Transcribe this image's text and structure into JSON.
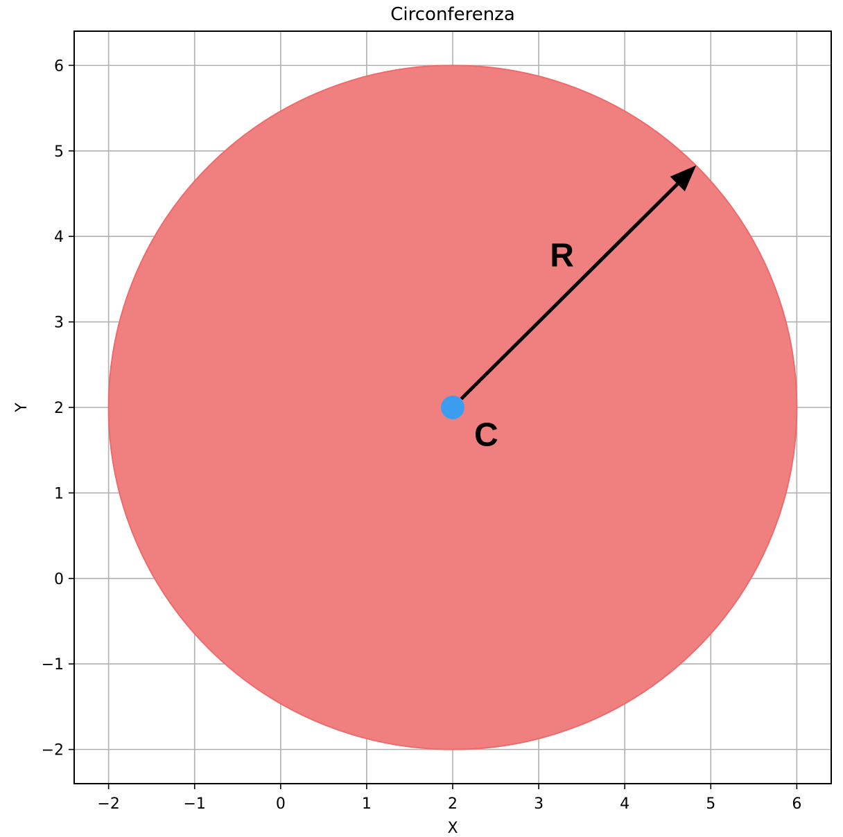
{
  "chart_data": {
    "type": "scatter",
    "title": "Circonferenza",
    "xlabel": "X",
    "ylabel": "Y",
    "xlim": [
      -2.4,
      6.4
    ],
    "ylim": [
      -2.4,
      6.4
    ],
    "xticks": [
      -2,
      -1,
      0,
      1,
      2,
      3,
      4,
      5,
      6
    ],
    "yticks": [
      -2,
      -1,
      0,
      1,
      2,
      3,
      4,
      5,
      6
    ],
    "xtick_labels": [
      "−2",
      "−1",
      "0",
      "1",
      "2",
      "3",
      "4",
      "5",
      "6"
    ],
    "ytick_labels": [
      "−2",
      "−1",
      "0",
      "1",
      "2",
      "3",
      "4",
      "5",
      "6"
    ],
    "grid": true,
    "circle": {
      "center": [
        2,
        2
      ],
      "radius": 4,
      "fill_color": "#f08080",
      "edge_color": "#ee6a6a"
    },
    "center_point": {
      "x": 2,
      "y": 2,
      "color": "#3b9cf0"
    },
    "radius_arrow": {
      "from": [
        2.1,
        2.1
      ],
      "to": [
        4.83,
        4.83
      ],
      "color": "#000000"
    },
    "annotations": [
      {
        "text": "R",
        "x": 3.13,
        "y": 3.65
      },
      {
        "text": "C",
        "x": 2.25,
        "y": 1.55
      }
    ]
  }
}
